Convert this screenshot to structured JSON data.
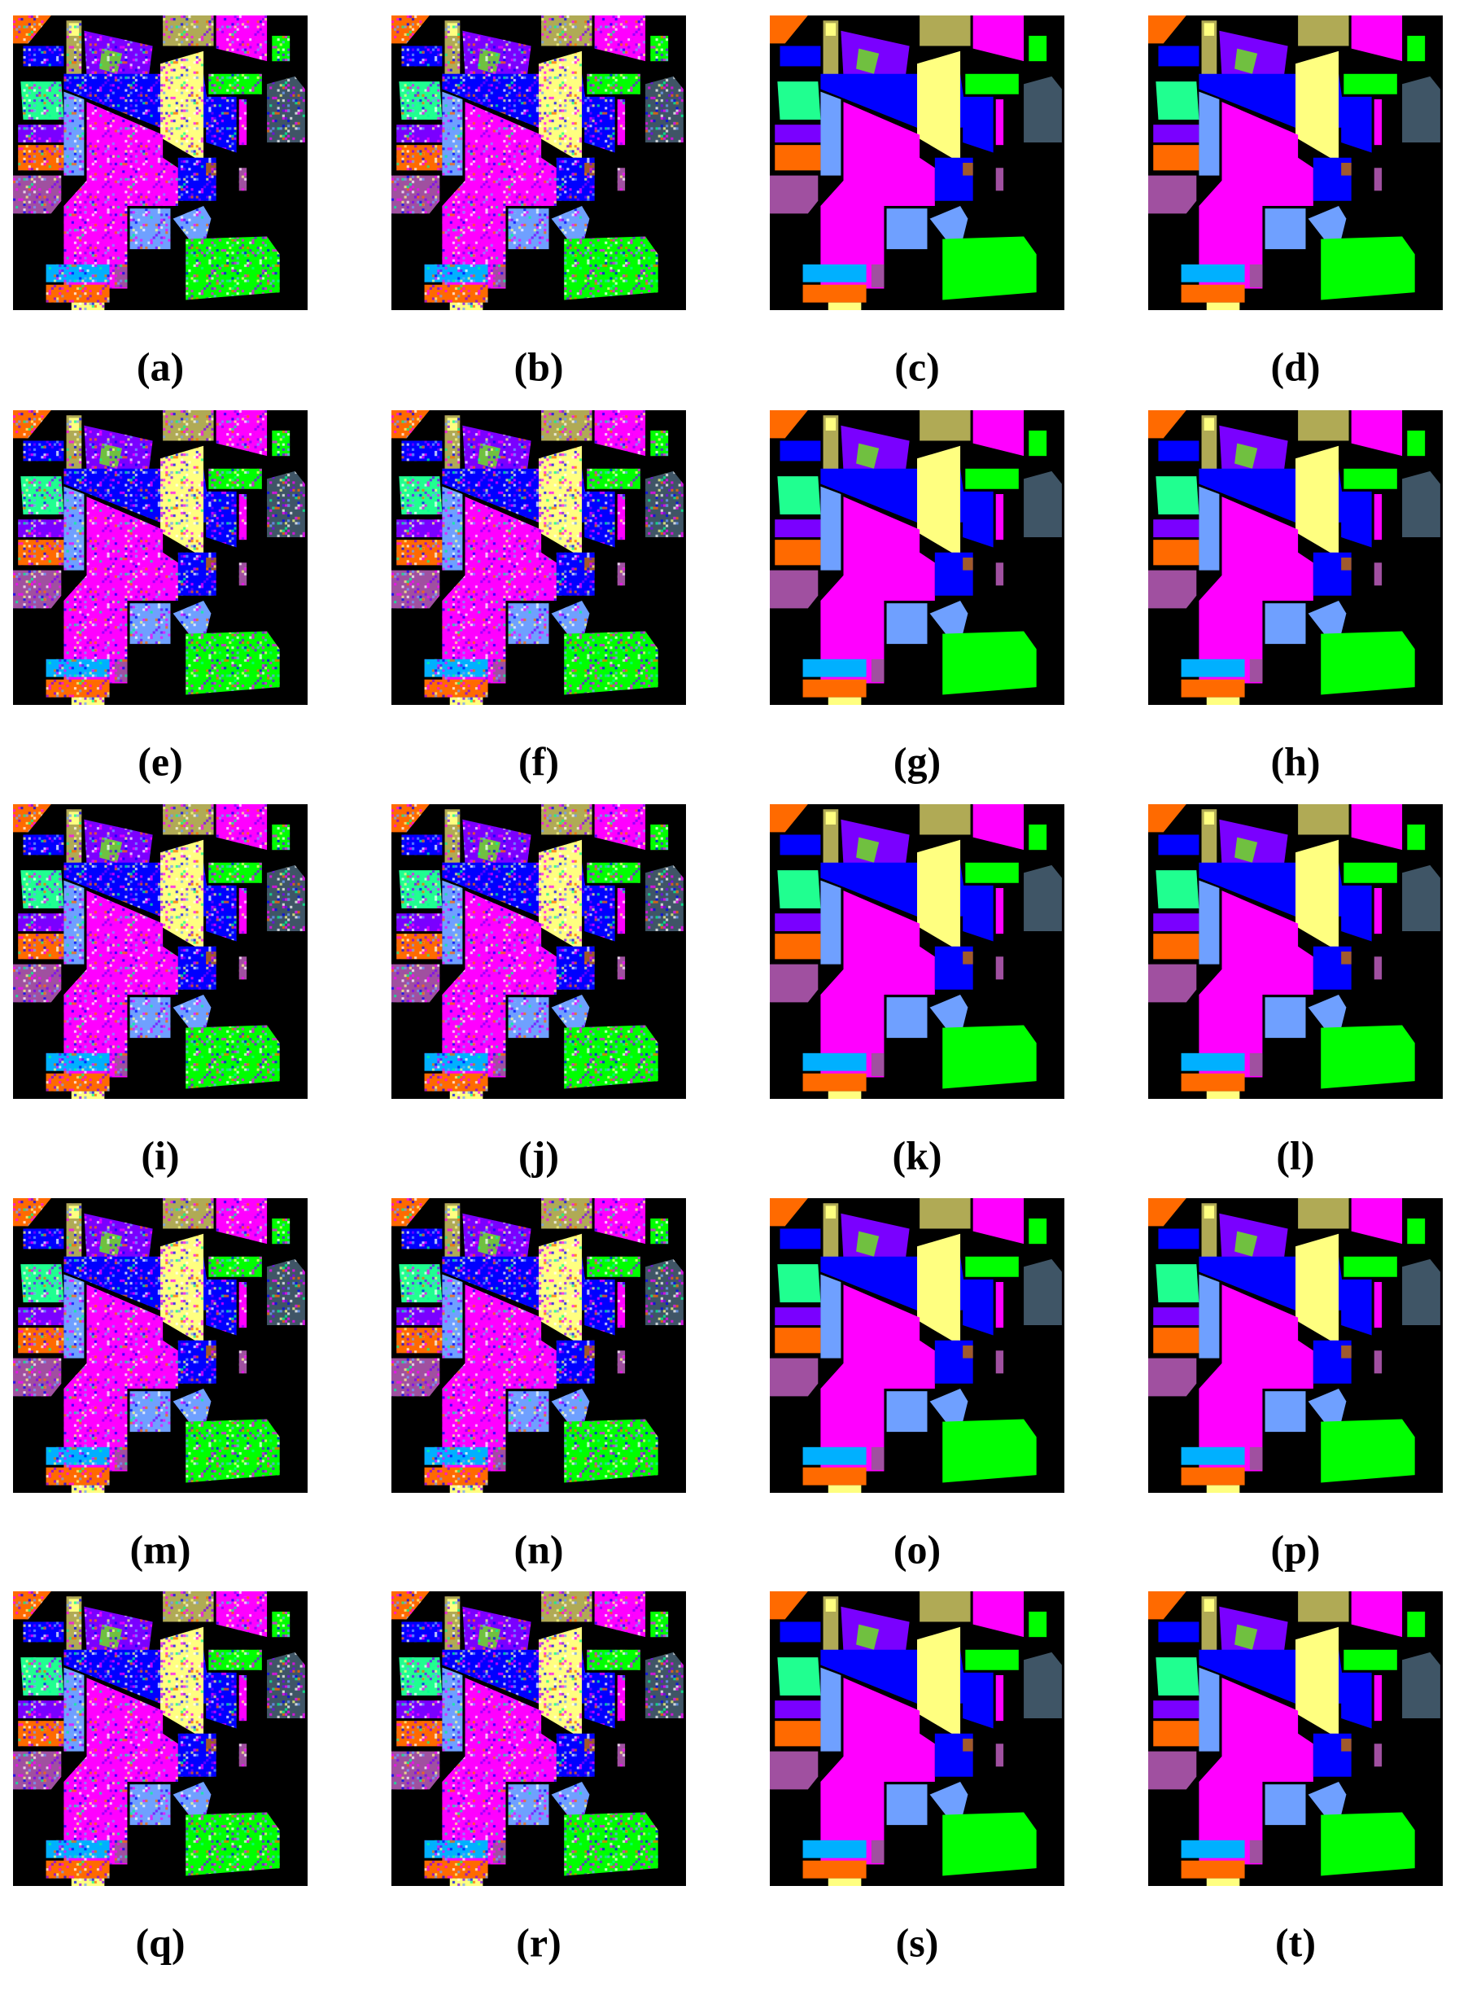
{
  "labels": [
    "(a)",
    "(b)",
    "(c)",
    "(d)",
    "(e)",
    "(f)",
    "(g)",
    "(h)",
    "(i)",
    "(j)",
    "(k)",
    "(l)",
    "(m)",
    "(n)",
    "(o)",
    "(p)",
    "(q)",
    "(r)",
    "(s)",
    "(t)"
  ]
}
